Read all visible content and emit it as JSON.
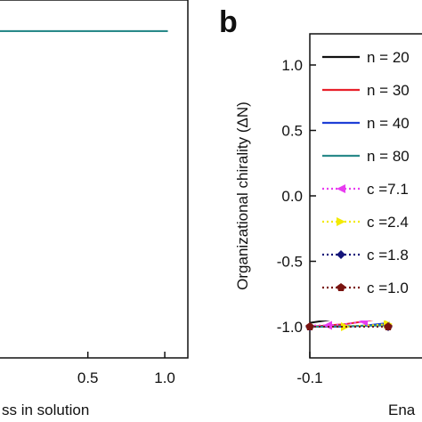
{
  "chart_data": [
    {
      "type": "line",
      "panel": "",
      "xlabel": "ss in solution",
      "ylabel": "",
      "xlim": [
        -0.1,
        1.15
      ],
      "ylim": [
        -1.1,
        1.2
      ],
      "x_ticks": [
        0.5,
        1.0
      ],
      "x_tick_labels": [
        "0.5",
        "1.0"
      ],
      "series": [
        {
          "name": "",
          "color": "#2a8a8a",
          "x": [
            -0.1,
            1.02
          ],
          "y": [
            1.0,
            1.0
          ]
        }
      ]
    },
    {
      "type": "line",
      "panel": "b",
      "xlabel": "Ena",
      "ylabel": "Organizational chirality (ΔN)",
      "xlim": [
        -0.1,
        0.5
      ],
      "ylim": [
        -1.2,
        1.2
      ],
      "y_ticks": [
        1.0,
        0.5,
        0.0,
        -0.5,
        -1.0
      ],
      "y_tick_labels": [
        "1.0",
        "0.5",
        "0.0",
        "-0.5",
        "-1.0"
      ],
      "x_ticks": [
        -0.1
      ],
      "x_tick_labels": [
        "-0.1"
      ],
      "legend_position": "top-right",
      "series": [
        {
          "name": "n = 20",
          "color": "#111111",
          "style": "line",
          "x": [
            -0.1,
            -0.05,
            0.0,
            0.03,
            0.06,
            0.09,
            0.11,
            0.125
          ],
          "y": [
            -0.97,
            -0.95,
            -0.92,
            -0.89,
            -0.86,
            -0.82,
            -0.78,
            -0.74
          ]
        },
        {
          "name": "n = 30",
          "color": "#e8202a",
          "style": "line",
          "x": [
            -0.1,
            -0.05,
            0.0,
            0.05,
            0.09,
            0.125
          ],
          "y": [
            -1.0,
            -0.99,
            -0.98,
            -0.96,
            -0.94,
            -0.91
          ]
        },
        {
          "name": "n = 40",
          "color": "#1f3fd6",
          "style": "line",
          "x": [
            -0.1,
            0.0,
            0.06,
            0.125
          ],
          "y": [
            -1.0,
            -1.0,
            -0.99,
            -0.97
          ]
        },
        {
          "name": "n = 80",
          "color": "#2a8a8a",
          "style": "line",
          "x": [
            -0.1,
            0.125
          ],
          "y": [
            -1.0,
            -0.99
          ]
        },
        {
          "name": "c =7.1",
          "color": "#e83cf0",
          "style": "dot-marker",
          "marker": "triangle-left",
          "x": [
            -0.1,
            -0.05,
            0.0,
            0.05,
            0.09,
            0.12
          ],
          "y": [
            -0.99,
            -0.99,
            -0.98,
            -0.96,
            -0.94,
            -0.92
          ]
        },
        {
          "name": "c =2.4",
          "color": "#f2ea00",
          "style": "dot-marker",
          "marker": "triangle-right",
          "x": [
            -0.1,
            0.0,
            0.06,
            0.12
          ],
          "y": [
            -1.0,
            -1.0,
            -0.99,
            -0.98
          ]
        },
        {
          "name": "c =1.8",
          "color": "#14157a",
          "style": "dot-marker",
          "marker": "diamond",
          "x": [
            -0.1,
            0.12
          ],
          "y": [
            -1.0,
            -1.0
          ]
        },
        {
          "name": "c =1.0",
          "color": "#7a1410",
          "style": "dot-marker",
          "marker": "pentagon",
          "x": [
            -0.1,
            0.12
          ],
          "y": [
            -1.0,
            -1.0
          ]
        }
      ]
    }
  ]
}
